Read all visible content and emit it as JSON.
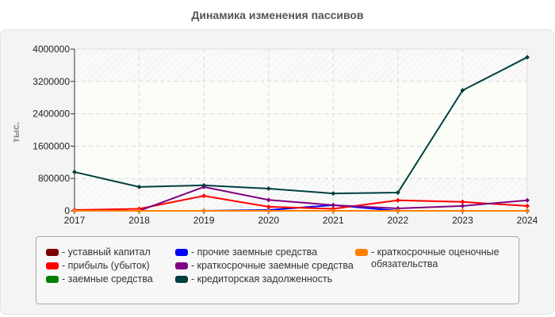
{
  "title": "Динамика изменения пассивов",
  "chart_data": {
    "type": "line",
    "title": "Динамика изменения пассивов",
    "xlabel": "",
    "ylabel": "тыс.",
    "ylim": [
      0,
      4000000
    ],
    "yticks": [
      "0",
      "800000",
      "1600000",
      "2400000",
      "3200000",
      "4000000"
    ],
    "categories": [
      "2017",
      "2018",
      "2019",
      "2020",
      "2021",
      "2022",
      "2023",
      "2024"
    ],
    "grid": true,
    "legend_position": "bottom",
    "series": [
      {
        "name": "уставный капитал",
        "color": "#800000",
        "values": [
          10,
          10,
          10,
          10,
          10,
          10,
          10,
          10
        ]
      },
      {
        "name": "прибыль (убыток)",
        "color": "#ff0000",
        "values": [
          20000,
          50000,
          370000,
          100000,
          50000,
          260000,
          220000,
          120000
        ]
      },
      {
        "name": "заемные средства",
        "color": "#008000",
        "values": [
          0,
          0,
          0,
          0,
          0,
          0,
          0,
          0
        ]
      },
      {
        "name": "прочие заемные средства",
        "color": "#0000ff",
        "values": [
          0,
          0,
          0,
          20000,
          140000,
          0,
          0,
          0
        ]
      },
      {
        "name": "краткосрочные заемные средства",
        "color": "#800080",
        "values": [
          0,
          0,
          590000,
          270000,
          140000,
          60000,
          120000,
          260000
        ]
      },
      {
        "name": "кредиторская задолженность",
        "color": "#004040",
        "values": [
          960000,
          590000,
          630000,
          550000,
          430000,
          450000,
          2980000,
          3800000
        ]
      },
      {
        "name": "краткосрочные оценочные обязательства",
        "color": "#ff8000",
        "values": [
          0,
          0,
          0,
          0,
          0,
          0,
          0,
          0
        ]
      }
    ]
  },
  "legend": {
    "col1": [
      {
        "label": "- уставный капитал",
        "color": "#800000"
      },
      {
        "label": "- прибыль (убыток)",
        "color": "#ff0000"
      },
      {
        "label": "- заемные средства",
        "color": "#008000"
      }
    ],
    "col2": [
      {
        "label": "- прочие заемные средства",
        "color": "#0000ff"
      },
      {
        "label": "- краткосрочные заемные средства",
        "color": "#800080"
      },
      {
        "label": "- кредиторская задолженность",
        "color": "#004040"
      }
    ],
    "col3": [
      {
        "label": "- краткосрочные оценочные обязательства",
        "color": "#ff8000"
      }
    ]
  }
}
